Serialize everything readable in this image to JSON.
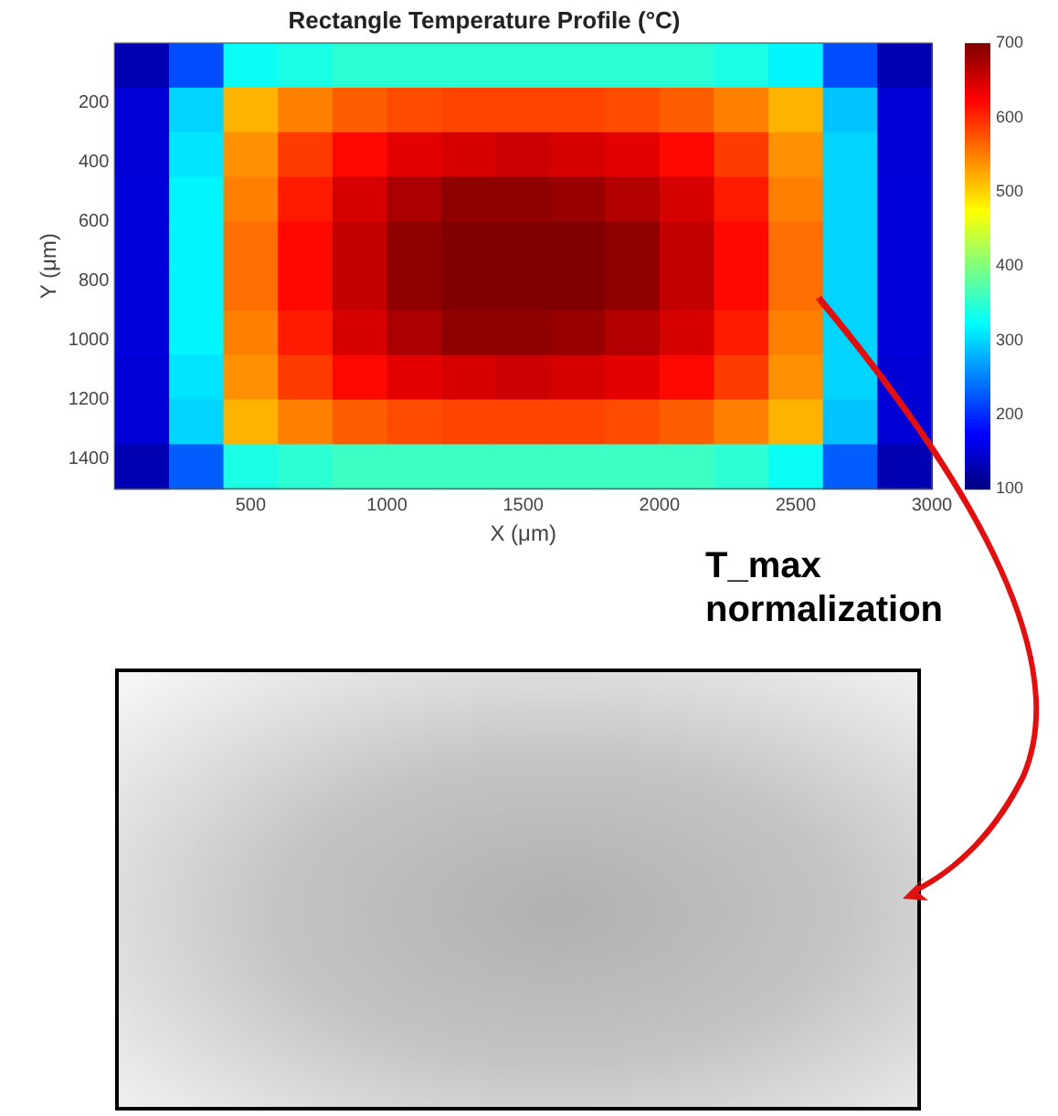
{
  "chart_data": {
    "type": "heatmap",
    "title": "Rectangle Temperature Profile (°C)",
    "xlabel": "X (μm)",
    "ylabel": "Y (μm)",
    "x": [
      100,
      300,
      500,
      700,
      900,
      1100,
      1300,
      1500,
      1700,
      1900,
      2100,
      2300,
      2500,
      2700,
      2900
    ],
    "y": [
      75,
      225,
      375,
      525,
      675,
      825,
      975,
      1125,
      1275,
      1425
    ],
    "xlim": [
      0,
      3000
    ],
    "xticks": [
      500,
      1000,
      1500,
      2000,
      2500,
      3000
    ],
    "ylim": [
      1500,
      0
    ],
    "yticks": [
      200,
      400,
      600,
      800,
      1000,
      1200,
      1400
    ],
    "clim": [
      100,
      700
    ],
    "cticks": [
      100,
      200,
      300,
      400,
      500,
      600,
      700
    ],
    "cells": [
      [
        130,
        220,
        330,
        340,
        350,
        350,
        350,
        350,
        350,
        350,
        350,
        340,
        320,
        220,
        130
      ],
      [
        150,
        300,
        520,
        550,
        570,
        580,
        585,
        585,
        585,
        580,
        570,
        550,
        520,
        290,
        150
      ],
      [
        150,
        310,
        540,
        590,
        620,
        640,
        650,
        655,
        650,
        640,
        620,
        590,
        540,
        300,
        150
      ],
      [
        155,
        320,
        550,
        610,
        650,
        675,
        690,
        690,
        685,
        670,
        650,
        610,
        550,
        300,
        155
      ],
      [
        155,
        320,
        560,
        620,
        660,
        690,
        700,
        700,
        700,
        690,
        660,
        620,
        560,
        300,
        155
      ],
      [
        155,
        320,
        560,
        620,
        660,
        690,
        700,
        700,
        700,
        690,
        660,
        620,
        560,
        300,
        155
      ],
      [
        155,
        320,
        550,
        610,
        650,
        675,
        690,
        690,
        685,
        670,
        650,
        610,
        550,
        300,
        155
      ],
      [
        150,
        310,
        540,
        590,
        620,
        640,
        650,
        655,
        650,
        640,
        620,
        590,
        540,
        300,
        150
      ],
      [
        150,
        300,
        520,
        550,
        570,
        580,
        585,
        585,
        585,
        580,
        570,
        550,
        520,
        290,
        150
      ],
      [
        130,
        230,
        340,
        350,
        360,
        360,
        360,
        360,
        360,
        360,
        360,
        350,
        330,
        230,
        130
      ]
    ],
    "annotations": [
      "T_max normalization"
    ]
  }
}
